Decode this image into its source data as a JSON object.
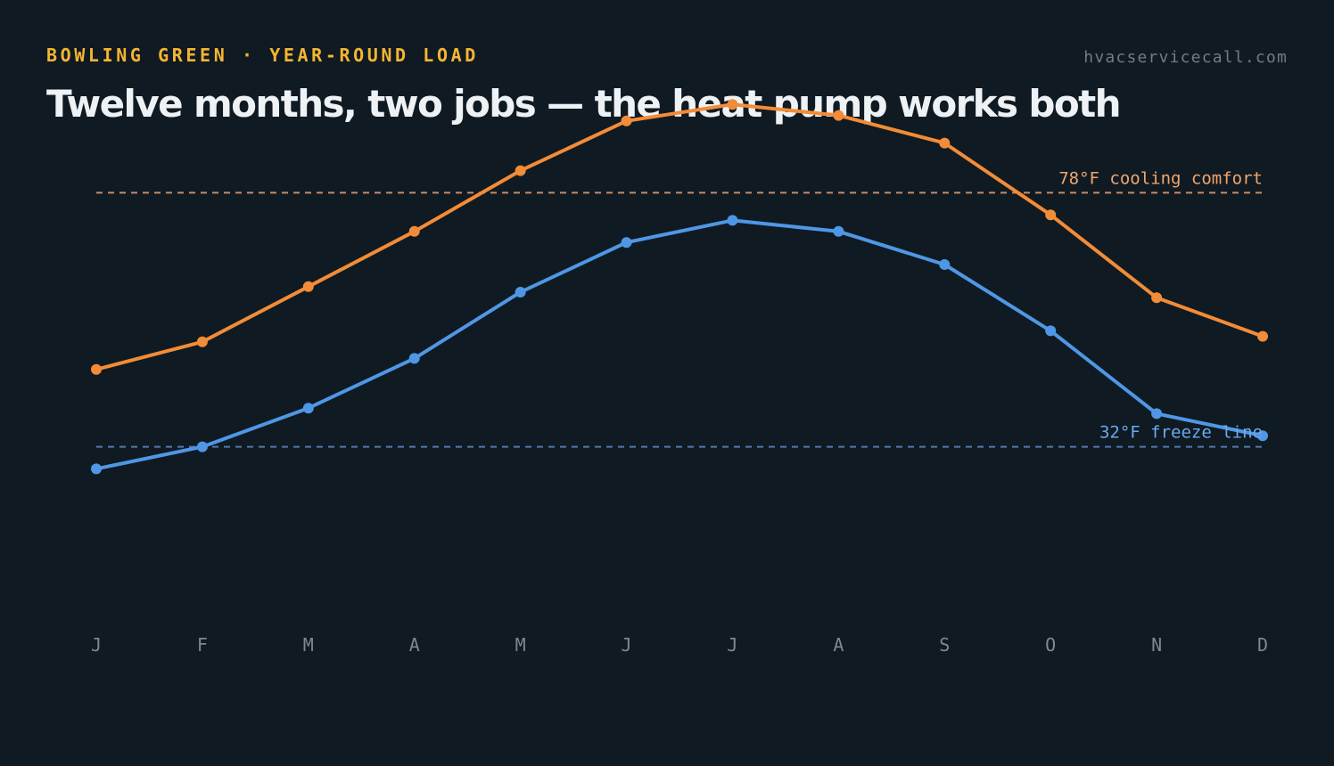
{
  "header": {
    "eyebrow": "BOWLING GREEN · YEAR-ROUND LOAD",
    "site": "hvacservicecall.com",
    "title": "Twelve months, two jobs — the heat pump works both"
  },
  "colors": {
    "background": "#101a22",
    "high_series": "#f28c38",
    "low_series": "#4f97e6",
    "cooling_line": "#c98a68",
    "cooling_label": "#f0a66e",
    "freeze_line": "#4f79b0",
    "freeze_label": "#6aaaf0",
    "eyebrow": "#f5b532"
  },
  "chart_data": {
    "type": "line",
    "title": "Twelve months, two jobs — the heat pump works both",
    "xlabel": "",
    "ylabel": "",
    "categories": [
      "J",
      "F",
      "M",
      "A",
      "M",
      "J",
      "J",
      "A",
      "S",
      "O",
      "N",
      "D"
    ],
    "series": [
      {
        "key": "high",
        "color": "#f28c38",
        "values": [
          46,
          51,
          61,
          71,
          82,
          91,
          94,
          92,
          87,
          74,
          59,
          52
        ]
      },
      {
        "key": "low",
        "color": "#4f97e6",
        "values": [
          28,
          32,
          39,
          48,
          60,
          69,
          73,
          71,
          65,
          53,
          38,
          34
        ]
      }
    ],
    "reference_lines": [
      {
        "value": 78,
        "label": "78°F cooling comfort",
        "color": "#c98a68",
        "label_color": "#f0a66e"
      },
      {
        "value": 32,
        "label": "32°F freeze line",
        "color": "#4f79b0",
        "label_color": "#6aaaf0"
      }
    ],
    "ylim": [
      0,
      100
    ],
    "grid": false,
    "legend": "none"
  }
}
